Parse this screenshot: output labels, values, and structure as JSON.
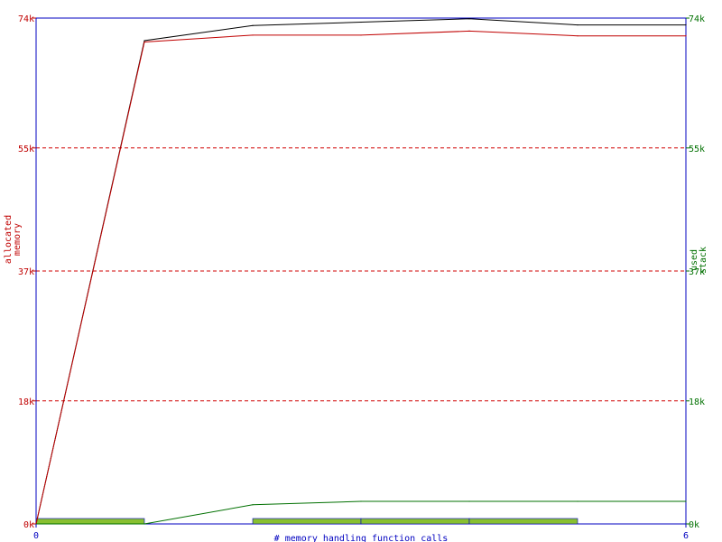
{
  "chart_data": {
    "type": "line",
    "xlabel": "# memory handling function calls",
    "ylabel_left": [
      "allocated",
      "memory"
    ],
    "ylabel_right": [
      "used",
      "stack"
    ],
    "x_ticks": [
      "0",
      "6"
    ],
    "y_ticks": [
      "0k",
      "18k",
      "37k",
      "55k",
      "74k"
    ],
    "y_tick_values": [
      0,
      18,
      37,
      55,
      74
    ],
    "xlim": [
      0,
      6
    ],
    "ylim": [
      0,
      74
    ],
    "grid": "dashed-horizontal",
    "colors": {
      "frame": "#0000c0",
      "left_axis_text": "#c00000",
      "right_axis_text": "#007000",
      "xlabel_text": "#0000c0",
      "gridline": "#d00000",
      "allocated": "#c00000",
      "total": "#000000",
      "stack": "#007000",
      "bars": "#88c030",
      "bars_edge": "#0000c0"
    },
    "series": [
      {
        "key": "total",
        "x": [
          0,
          1,
          2,
          3,
          4,
          5,
          6
        ],
        "values": [
          0,
          70.7,
          72.9,
          73.4,
          73.9,
          73.0,
          73.0
        ]
      },
      {
        "key": "allocated",
        "x": [
          0,
          1,
          2,
          3,
          4,
          5,
          6
        ],
        "values": [
          0,
          70.5,
          71.5,
          71.5,
          72.1,
          71.4,
          71.4
        ]
      },
      {
        "key": "stack",
        "x": [
          0,
          1,
          2,
          3,
          4,
          5,
          6
        ],
        "values": [
          0,
          0,
          2.8,
          3.3,
          3.3,
          3.3,
          3.3
        ]
      }
    ],
    "bars": [
      {
        "from": 0,
        "to": 1
      },
      {
        "from": 2,
        "to": 3
      },
      {
        "from": 3,
        "to": 4
      },
      {
        "from": 4,
        "to": 5
      }
    ]
  }
}
